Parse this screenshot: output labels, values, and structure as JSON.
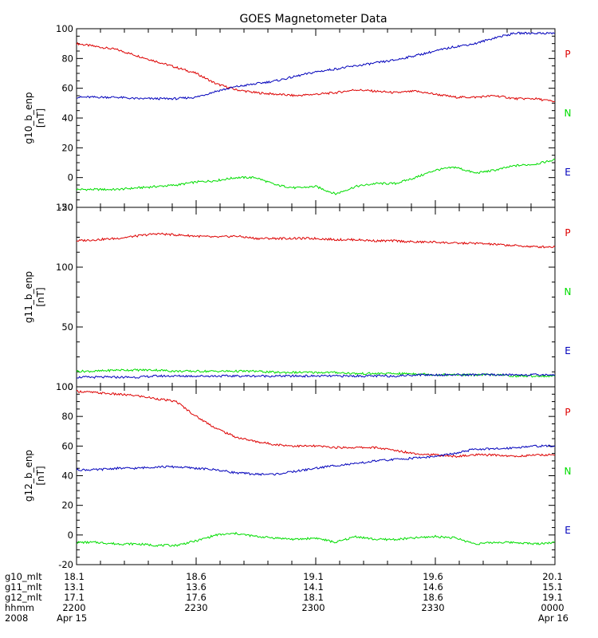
{
  "title": "GOES Magnetometer Data",
  "colors": {
    "P": "#dd0000",
    "N": "#00dd00",
    "E": "#0000bb",
    "axis": "#000000"
  },
  "legend": [
    {
      "label": "P",
      "color": "#dd0000"
    },
    {
      "label": "N",
      "color": "#00dd00"
    },
    {
      "label": "E",
      "color": "#0000bb"
    }
  ],
  "time_axis": {
    "ticks": [
      "2200",
      "2230",
      "2300",
      "2330",
      "0000"
    ],
    "rows": [
      {
        "name": "g10_mlt",
        "values": [
          "18.1",
          "18.6",
          "19.1",
          "19.6",
          "20.1"
        ]
      },
      {
        "name": "g11_mlt",
        "values": [
          "13.1",
          "13.6",
          "14.1",
          "14.6",
          "15.1"
        ]
      },
      {
        "name": "g12_mlt",
        "values": [
          "17.1",
          "17.6",
          "18.1",
          "18.6",
          "19.1"
        ]
      },
      {
        "name": "hhmm",
        "values": [
          "2200",
          "2230",
          "2300",
          "2330",
          "0000"
        ]
      },
      {
        "name": "2008",
        "values": [
          "Apr 15",
          "",
          "",
          "",
          "Apr 16"
        ]
      }
    ]
  },
  "chart_data": [
    {
      "type": "line",
      "ylabel": "g10_b_enp",
      "yunit": "[nT]",
      "ylim": [
        -20,
        100
      ],
      "yticks": [
        -20,
        0,
        20,
        40,
        60,
        80,
        100
      ],
      "x_minutes": [
        0,
        5,
        10,
        15,
        20,
        25,
        30,
        35,
        40,
        45,
        50,
        55,
        60,
        65,
        70,
        75,
        80,
        85,
        90,
        95,
        100,
        105,
        110,
        115,
        120
      ],
      "series": [
        {
          "name": "P",
          "color": "#dd0000",
          "values": [
            90,
            88,
            86,
            82,
            78,
            74,
            70,
            63,
            59,
            57,
            56,
            55,
            56,
            57,
            59,
            58,
            57,
            58,
            56,
            54,
            54,
            55,
            53,
            53,
            51
          ]
        },
        {
          "name": "N",
          "color": "#00dd00",
          "values": [
            -8,
            -8,
            -8,
            -7,
            -6,
            -5,
            -3,
            -2,
            0,
            0,
            -5,
            -7,
            -6,
            -11,
            -6,
            -4,
            -4,
            0,
            5,
            7,
            3,
            5,
            8,
            9,
            12
          ]
        },
        {
          "name": "E",
          "color": "#0000bb",
          "values": [
            54,
            54,
            54,
            53,
            53,
            53,
            54,
            58,
            61,
            63,
            65,
            68,
            71,
            73,
            75,
            77,
            79,
            82,
            85,
            88,
            90,
            94,
            97,
            97,
            97
          ]
        }
      ]
    },
    {
      "type": "line",
      "ylabel": "g11_b_enp",
      "yunit": "[nT]",
      "ylim": [
        0,
        150
      ],
      "yticks": [
        0,
        50,
        100,
        150
      ],
      "x_minutes": [
        0,
        5,
        10,
        15,
        20,
        25,
        30,
        35,
        40,
        45,
        50,
        55,
        60,
        65,
        70,
        75,
        80,
        85,
        90,
        95,
        100,
        105,
        110,
        115,
        120
      ],
      "series": [
        {
          "name": "P",
          "color": "#dd0000",
          "values": [
            122,
            123,
            124,
            126,
            128,
            127,
            126,
            125,
            126,
            124,
            124,
            124,
            124,
            123,
            123,
            122,
            122,
            121,
            121,
            120,
            120,
            119,
            118,
            117,
            117
          ]
        },
        {
          "name": "N",
          "color": "#00dd00",
          "values": [
            13,
            13,
            14,
            14,
            14,
            13,
            13,
            13,
            13,
            13,
            12,
            12,
            12,
            12,
            11,
            11,
            11,
            11,
            10,
            10,
            10,
            10,
            9,
            9,
            9
          ]
        },
        {
          "name": "E",
          "color": "#0000bb",
          "values": [
            8,
            8,
            8,
            8,
            9,
            9,
            9,
            9,
            9,
            9,
            9,
            9,
            9,
            9,
            9,
            9,
            9,
            10,
            10,
            10,
            10,
            10,
            10,
            10,
            10
          ]
        }
      ]
    },
    {
      "type": "line",
      "ylabel": "g12_b_enp",
      "yunit": "[nT]",
      "ylim": [
        -20,
        100
      ],
      "yticks": [
        -20,
        0,
        20,
        40,
        60,
        80,
        100
      ],
      "x_minutes": [
        0,
        5,
        10,
        15,
        20,
        25,
        30,
        35,
        40,
        45,
        50,
        55,
        60,
        65,
        70,
        75,
        80,
        85,
        90,
        95,
        100,
        105,
        110,
        115,
        120
      ],
      "series": [
        {
          "name": "P",
          "color": "#dd0000",
          "values": [
            97,
            96,
            95,
            94,
            92,
            90,
            80,
            72,
            66,
            63,
            61,
            60,
            60,
            59,
            59,
            59,
            57,
            55,
            54,
            53,
            54,
            54,
            53,
            54,
            54
          ]
        },
        {
          "name": "N",
          "color": "#00dd00",
          "values": [
            -5,
            -5,
            -6,
            -6,
            -7,
            -7,
            -4,
            0,
            1,
            -1,
            -2,
            -3,
            -2,
            -5,
            -1,
            -3,
            -3,
            -2,
            -1,
            -2,
            -6,
            -5,
            -5,
            -6,
            -5
          ]
        },
        {
          "name": "E",
          "color": "#0000bb",
          "values": [
            44,
            44,
            45,
            45,
            46,
            46,
            45,
            44,
            42,
            41,
            41,
            43,
            45,
            47,
            48,
            50,
            51,
            52,
            53,
            55,
            58,
            58,
            59,
            60,
            60
          ]
        }
      ]
    }
  ]
}
